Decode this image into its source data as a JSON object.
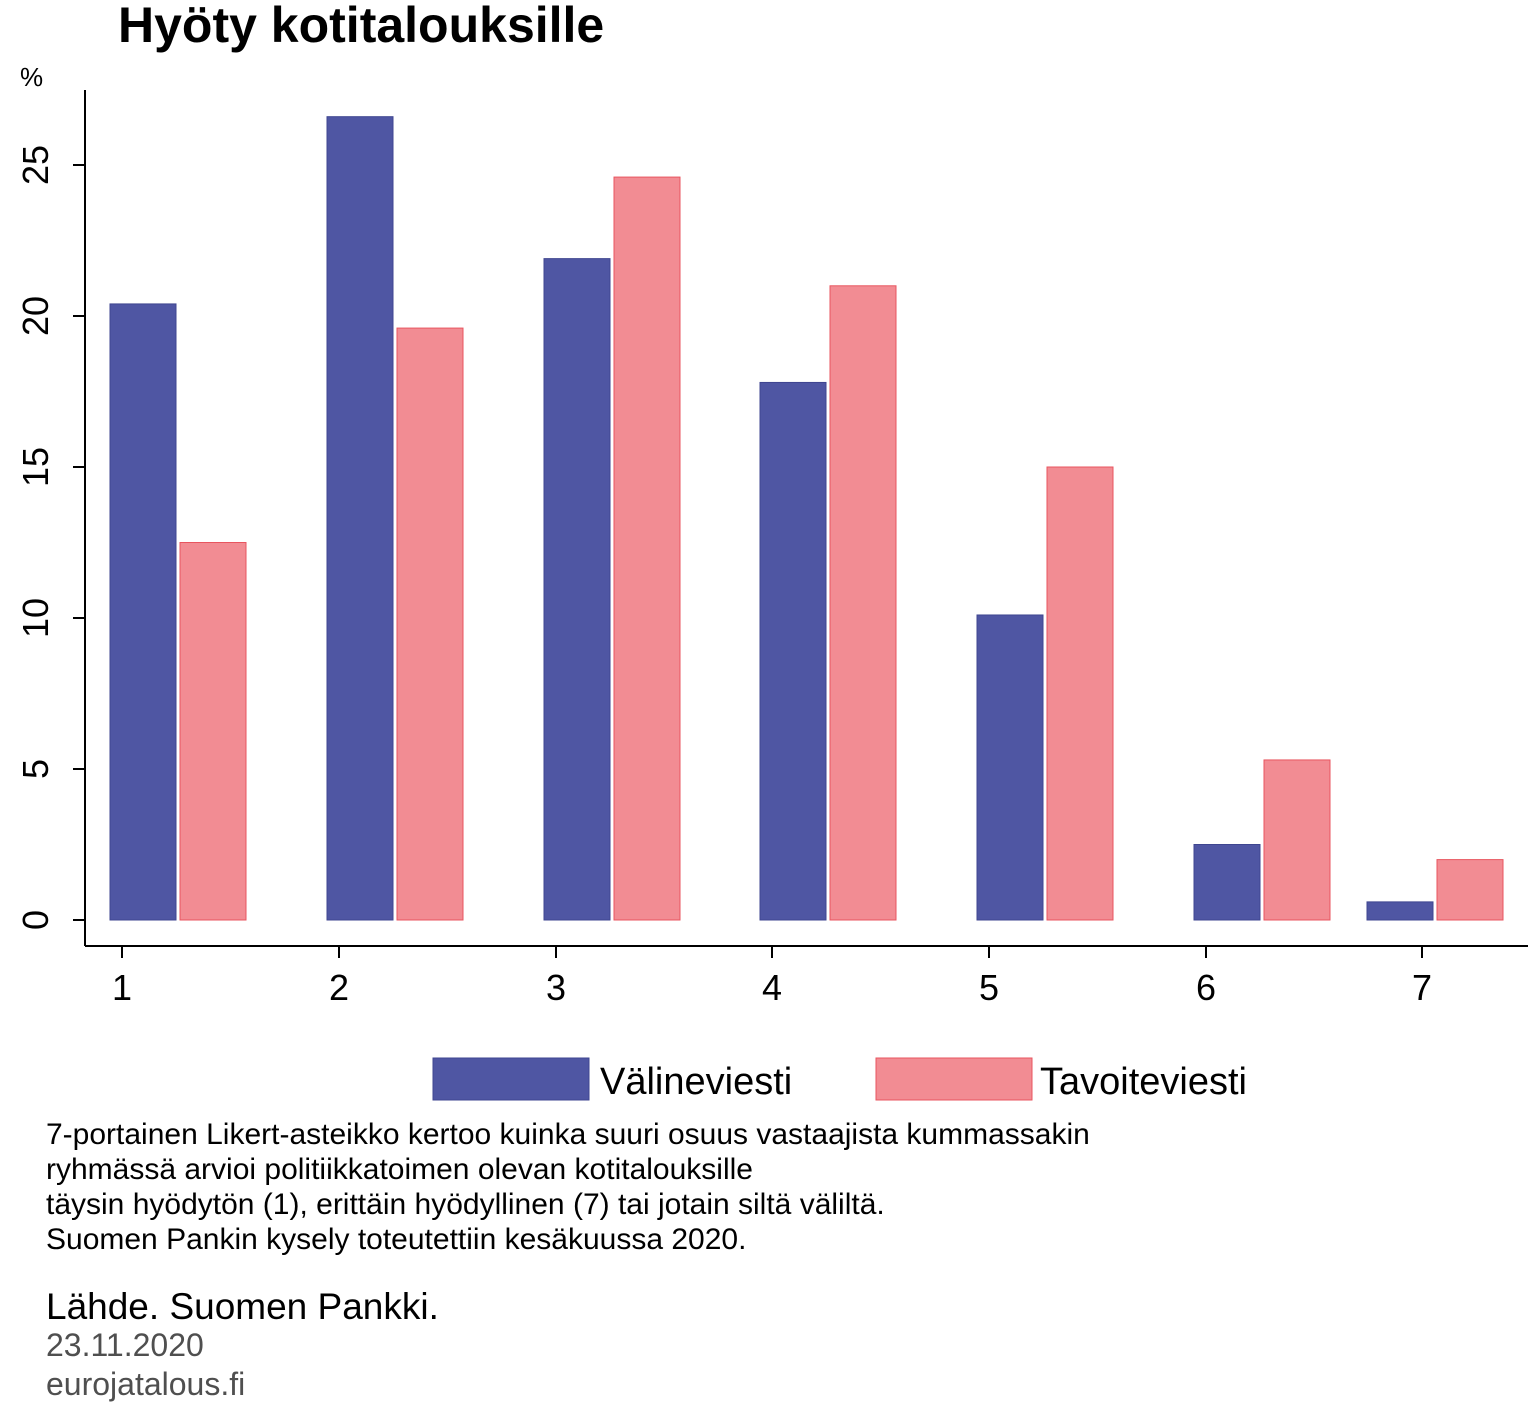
{
  "chart_data": {
    "type": "bar",
    "title": "Hyöty kotitalouksille",
    "unit_label": "%",
    "categories": [
      "1",
      "2",
      "3",
      "4",
      "5",
      "6",
      "7"
    ],
    "series": [
      {
        "name": "Välineviesti",
        "color": "#4f56a3",
        "values": [
          20.4,
          26.6,
          21.9,
          17.8,
          10.1,
          2.5,
          0.6
        ]
      },
      {
        "name": "Tavoiteviesti",
        "color": "#f28c93",
        "values": [
          12.5,
          19.6,
          24.6,
          21.0,
          15.0,
          5.3,
          2.0
        ]
      }
    ],
    "y_ticks": [
      "0",
      "5",
      "10",
      "15",
      "20",
      "25"
    ],
    "ylim": [
      0,
      27.5
    ],
    "grid": false,
    "legend_position": "bottom"
  },
  "notes": [
    "7-portainen Likert-asteikko kertoo kuinka suuri osuus vastaajista kummassakin",
    "ryhmässä arvioi politiikkatoimen olevan kotitalouksille",
    "täysin hyödytön (1), erittäin hyödyllinen (7) tai jotain siltä väliltä.",
    "Suomen Pankin kysely toteutettiin kesäkuussa 2020."
  ],
  "source": "Lähde. Suomen Pankki.",
  "date": "23.11.2020",
  "website": "eurojatalous.fi"
}
